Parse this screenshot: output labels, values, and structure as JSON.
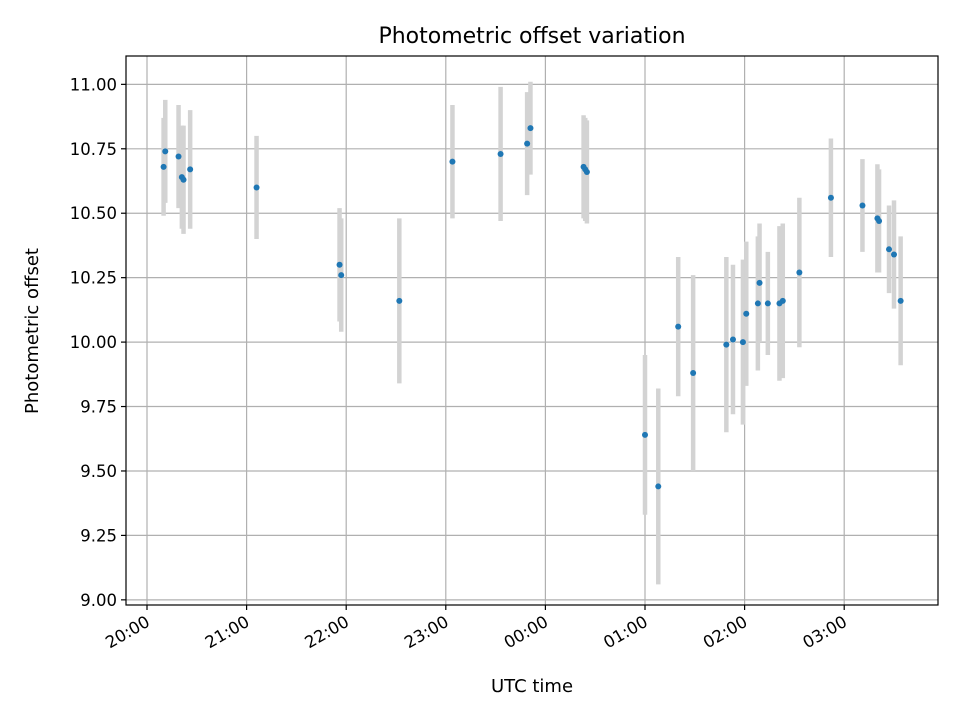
{
  "chart_data": {
    "type": "scatter",
    "title": "Photometric offset variation",
    "xlabel": "UTC time",
    "ylabel": "Photometric offset",
    "x_tick_labels": [
      "20:00",
      "21:00",
      "22:00",
      "23:00",
      "00:00",
      "01:00",
      "02:00",
      "03:00"
    ],
    "y_tick_labels": [
      "9.00",
      "9.25",
      "9.50",
      "9.75",
      "10.00",
      "10.25",
      "10.50",
      "10.75",
      "11.00"
    ],
    "ylim": [
      8.98,
      11.11
    ],
    "grid": true,
    "colors": {
      "marker": "#1f77b4",
      "errorbar": "#d3d3d3",
      "grid": "#b0b0b0"
    },
    "series": [
      {
        "points": [
          {
            "x": "20:10",
            "y": 10.68,
            "yerr": 0.19
          },
          {
            "x": "20:11",
            "y": 10.74,
            "yerr": 0.2
          },
          {
            "x": "20:19",
            "y": 10.72,
            "yerr": 0.2
          },
          {
            "x": "20:21",
            "y": 10.64,
            "yerr": 0.2
          },
          {
            "x": "20:22",
            "y": 10.63,
            "yerr": 0.21
          },
          {
            "x": "20:26",
            "y": 10.67,
            "yerr": 0.23
          },
          {
            "x": "21:06",
            "y": 10.6,
            "yerr": 0.2
          },
          {
            "x": "21:56",
            "y": 10.3,
            "yerr": 0.22
          },
          {
            "x": "21:57",
            "y": 10.26,
            "yerr": 0.22
          },
          {
            "x": "22:32",
            "y": 10.16,
            "yerr": 0.32
          },
          {
            "x": "23:04",
            "y": 10.7,
            "yerr": 0.22
          },
          {
            "x": "23:33",
            "y": 10.73,
            "yerr": 0.26
          },
          {
            "x": "23:49",
            "y": 10.77,
            "yerr": 0.2
          },
          {
            "x": "23:51",
            "y": 10.83,
            "yerr": 0.18
          },
          {
            "x": "00:23",
            "y": 10.68,
            "yerr": 0.2
          },
          {
            "x": "00:24",
            "y": 10.67,
            "yerr": 0.2
          },
          {
            "x": "00:25",
            "y": 10.66,
            "yerr": 0.2
          },
          {
            "x": "01:00",
            "y": 9.64,
            "yerr": 0.31
          },
          {
            "x": "01:08",
            "y": 9.44,
            "yerr": 0.38
          },
          {
            "x": "01:20",
            "y": 10.06,
            "yerr": 0.27
          },
          {
            "x": "01:29",
            "y": 9.88,
            "yerr": 0.38
          },
          {
            "x": "01:49",
            "y": 9.99,
            "yerr": 0.34
          },
          {
            "x": "01:53",
            "y": 10.01,
            "yerr": 0.29
          },
          {
            "x": "01:59",
            "y": 10.0,
            "yerr": 0.32
          },
          {
            "x": "02:01",
            "y": 10.11,
            "yerr": 0.28
          },
          {
            "x": "02:08",
            "y": 10.15,
            "yerr": 0.26
          },
          {
            "x": "02:09",
            "y": 10.23,
            "yerr": 0.23
          },
          {
            "x": "02:14",
            "y": 10.15,
            "yerr": 0.2
          },
          {
            "x": "02:21",
            "y": 10.15,
            "yerr": 0.3
          },
          {
            "x": "02:23",
            "y": 10.16,
            "yerr": 0.3
          },
          {
            "x": "02:33",
            "y": 10.27,
            "yerr": 0.29
          },
          {
            "x": "02:52",
            "y": 10.56,
            "yerr": 0.23
          },
          {
            "x": "03:11",
            "y": 10.53,
            "yerr": 0.18
          },
          {
            "x": "03:20",
            "y": 10.48,
            "yerr": 0.21
          },
          {
            "x": "03:21",
            "y": 10.47,
            "yerr": 0.2
          },
          {
            "x": "03:27",
            "y": 10.36,
            "yerr": 0.17
          },
          {
            "x": "03:30",
            "y": 10.34,
            "yerr": 0.21
          },
          {
            "x": "03:34",
            "y": 10.16,
            "yerr": 0.25
          }
        ]
      }
    ]
  }
}
